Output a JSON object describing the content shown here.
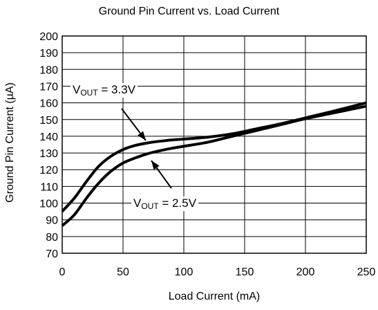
{
  "chart_data": {
    "type": "line",
    "title": "Ground Pin Current vs. Load Current",
    "xlabel": "Load Current (mA)",
    "ylabel": "Ground Pin Current (µA)",
    "xlim": [
      0,
      250
    ],
    "ylim": [
      70,
      200
    ],
    "xticks": [
      "0",
      "50",
      "100",
      "150",
      "200",
      "250"
    ],
    "yticks": [
      "70",
      "80",
      "90",
      "100",
      "110",
      "120",
      "130",
      "140",
      "150",
      "160",
      "170",
      "180",
      "190",
      "200"
    ],
    "grid": true,
    "series": [
      {
        "name": "VOUT = 3.3V",
        "x": [
          0,
          10,
          20,
          30,
          40,
          50,
          60,
          70,
          80,
          90,
          100,
          120,
          140,
          160,
          180,
          200,
          220,
          250
        ],
        "y": [
          95,
          103,
          113,
          122,
          128,
          132,
          134.5,
          136,
          137,
          137.8,
          138.3,
          139.5,
          141.5,
          144.5,
          147.5,
          151,
          154.5,
          160
        ]
      },
      {
        "name": "VOUT = 2.5V",
        "x": [
          0,
          10,
          20,
          30,
          40,
          50,
          60,
          70,
          80,
          90,
          100,
          120,
          140,
          160,
          180,
          200,
          220,
          250
        ],
        "y": [
          86.5,
          93,
          103,
          112,
          119,
          124,
          127,
          129.5,
          131.3,
          132.8,
          134,
          136.5,
          140,
          143.5,
          147,
          150.5,
          153.5,
          158
        ]
      }
    ],
    "annotations": [
      {
        "base": "V",
        "sub": "OUT",
        "rest": " = 3.3V"
      },
      {
        "base": "V",
        "sub": "OUT",
        "rest": " = 2.5V"
      }
    ]
  }
}
